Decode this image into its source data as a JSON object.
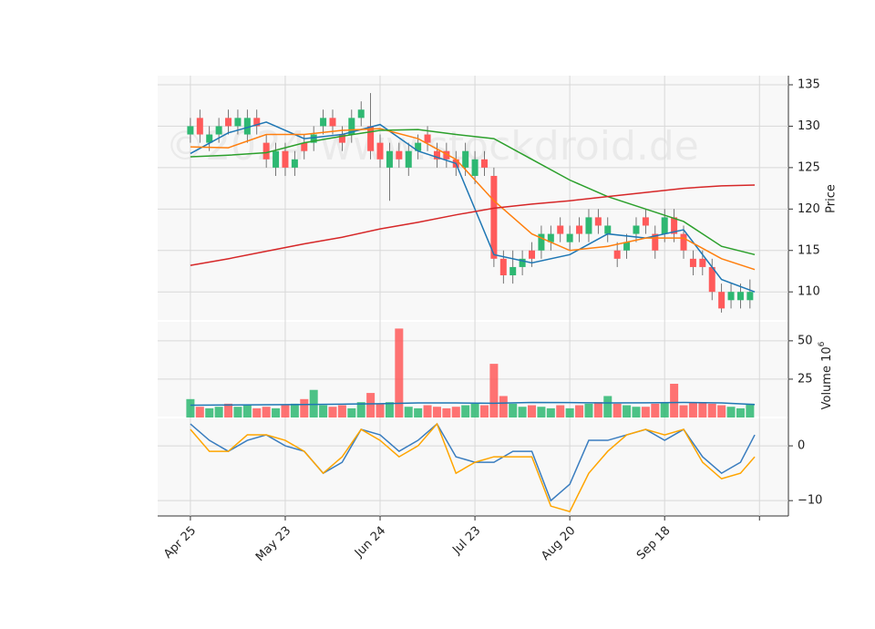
{
  "chart_data": [
    {
      "type": "candlestick",
      "ylabel": "Price",
      "watermark": "©2024 www.stockdroid.de",
      "up_color": "#2eb872",
      "down_color": "#ff5a5a",
      "x": [
        0,
        2,
        4,
        6,
        8,
        10,
        12,
        14,
        16,
        18,
        20,
        22,
        24,
        26,
        28,
        30,
        32,
        34,
        36,
        38,
        40,
        42,
        44,
        46,
        48,
        50,
        52,
        54,
        56,
        58,
        60,
        62,
        64,
        66,
        68,
        70,
        72,
        74,
        76,
        78,
        80,
        82,
        84,
        86,
        88,
        90,
        92,
        94,
        96,
        98,
        100,
        102,
        104,
        106,
        108,
        110,
        112,
        114,
        116,
        118
      ],
      "open": [
        129,
        131,
        128,
        129,
        131,
        130,
        129,
        131,
        128,
        125,
        127,
        125,
        128,
        128,
        130,
        131,
        129,
        129,
        131,
        130,
        128,
        125,
        127,
        125,
        127,
        129,
        127,
        127,
        126,
        125,
        124,
        126,
        124,
        114,
        112,
        113,
        115,
        115,
        116,
        118,
        116,
        118,
        117,
        119,
        117,
        115,
        115,
        117,
        119,
        117,
        117,
        119,
        117,
        114,
        114,
        113,
        110,
        109,
        109,
        109
      ],
      "high": [
        131,
        132,
        130,
        131,
        132,
        132,
        132,
        132,
        129,
        128,
        128,
        127,
        129,
        130,
        132,
        132,
        130,
        132,
        133,
        134,
        129,
        128,
        128,
        128,
        129,
        130,
        128,
        128,
        127,
        128,
        127,
        127,
        125,
        115,
        115,
        115,
        116,
        118,
        118,
        119,
        118,
        119,
        120,
        120,
        119,
        116,
        117,
        119,
        120,
        118,
        120,
        120,
        118,
        115,
        115,
        114,
        111,
        111,
        111,
        111.5
      ],
      "low": [
        128,
        128,
        127,
        128,
        129,
        129,
        128,
        129,
        125,
        124,
        124,
        124,
        126,
        127,
        129,
        129,
        127,
        128,
        130,
        126,
        125,
        121,
        125,
        124,
        126,
        127,
        125,
        125,
        124,
        124,
        123,
        124,
        113,
        111,
        111,
        112,
        113,
        114,
        115,
        116,
        115,
        116,
        116,
        117,
        116,
        113,
        114,
        116,
        117,
        114,
        116,
        116,
        114,
        112,
        112,
        109,
        107.5,
        108,
        108,
        108
      ],
      "close": [
        130,
        129,
        129,
        130,
        130,
        131,
        131,
        130,
        126,
        127,
        125,
        126,
        127,
        129,
        131,
        130,
        128,
        131,
        132,
        127,
        126,
        127,
        126,
        127,
        128,
        128,
        126,
        126,
        125,
        127,
        126,
        125,
        114,
        112,
        113,
        114,
        114,
        117,
        117,
        117,
        117,
        117,
        119,
        118,
        118,
        114,
        116,
        118,
        118,
        115,
        119,
        117,
        115,
        113,
        113,
        110,
        108,
        110,
        110,
        110
      ],
      "ylim": [
        106.5,
        136.1
      ],
      "yticks": [
        110,
        115,
        120,
        125,
        130,
        135
      ],
      "lines": [
        {
          "color": "#1f77b4",
          "x": [
            0,
            8,
            16,
            24,
            32,
            40,
            48,
            56,
            64,
            72,
            80,
            88,
            96,
            104,
            112,
            119
          ],
          "values": [
            126.7,
            129.2,
            130.5,
            128.5,
            129,
            130.2,
            127,
            125.5,
            114.5,
            113.5,
            114.5,
            117,
            116.5,
            117.5,
            111.5,
            110
          ]
        },
        {
          "color": "#ff7f0e",
          "x": [
            0,
            8,
            16,
            24,
            32,
            40,
            48,
            56,
            64,
            72,
            80,
            88,
            96,
            104,
            112,
            119
          ],
          "values": [
            127.5,
            127.4,
            129,
            129,
            129.5,
            129.7,
            128.5,
            126,
            121,
            117,
            115,
            115.5,
            116.5,
            116.5,
            114,
            112.7
          ]
        },
        {
          "color": "#2ca02c",
          "x": [
            0,
            8,
            16,
            24,
            32,
            40,
            48,
            56,
            64,
            72,
            80,
            88,
            96,
            104,
            112,
            119
          ],
          "values": [
            126.3,
            126.5,
            126.8,
            128,
            128.8,
            129.5,
            129.6,
            129,
            128.5,
            126,
            123.5,
            121.5,
            120,
            118.5,
            115.5,
            114.5
          ]
        },
        {
          "color": "#d62728",
          "x": [
            0,
            8,
            16,
            24,
            32,
            40,
            48,
            56,
            64,
            72,
            80,
            88,
            96,
            104,
            112,
            119
          ],
          "values": [
            113.2,
            114,
            114.9,
            115.8,
            116.6,
            117.6,
            118.4,
            119.3,
            120.1,
            120.6,
            121,
            121.5,
            122,
            122.5,
            122.8,
            122.9
          ]
        }
      ]
    },
    {
      "type": "bar",
      "ylabel": "Volume",
      "ylabel_exp": "6",
      "ylabel_base": "10",
      "x": [
        0,
        2,
        4,
        6,
        8,
        10,
        12,
        14,
        16,
        18,
        20,
        22,
        24,
        26,
        28,
        30,
        32,
        34,
        36,
        38,
        40,
        42,
        44,
        46,
        48,
        50,
        52,
        54,
        56,
        58,
        60,
        62,
        64,
        66,
        68,
        70,
        72,
        74,
        76,
        78,
        80,
        82,
        84,
        86,
        88,
        90,
        92,
        94,
        96,
        98,
        100,
        102,
        104,
        106,
        108,
        110,
        112,
        114,
        116,
        118
      ],
      "values": [
        12,
        7,
        6,
        7,
        9,
        7,
        8,
        6,
        7,
        6,
        8,
        9,
        12,
        18,
        8,
        7,
        8,
        6,
        10,
        16,
        9,
        10,
        58,
        7,
        6,
        8,
        7,
        6,
        7,
        8,
        9,
        8,
        35,
        14,
        9,
        7,
        8,
        7,
        6,
        8,
        6,
        8,
        9,
        10,
        14,
        9,
        8,
        7,
        7,
        9,
        10,
        22,
        8,
        10,
        10,
        9,
        8,
        7,
        6,
        9
      ],
      "ylim": [
        0,
        63
      ],
      "yticks": [
        25,
        50
      ],
      "line": {
        "color": "#1f77b4",
        "x": [
          0,
          8,
          16,
          24,
          32,
          40,
          48,
          56,
          64,
          72,
          80,
          88,
          96,
          104,
          112,
          119
        ],
        "values": [
          8,
          8.2,
          8.3,
          8.5,
          8.7,
          9,
          9.5,
          9.5,
          9.3,
          9.8,
          9.7,
          9.5,
          9.6,
          9.8,
          9.5,
          8.5
        ]
      }
    },
    {
      "type": "line",
      "ylim": [
        -12.8,
        5.17
      ],
      "yticks": [
        {
          "value": -10,
          "label": "−10"
        },
        0
      ],
      "xlim": [
        -6.9,
        126.1
      ],
      "xticks": [
        {
          "value": 0,
          "label": "Apr 25"
        },
        {
          "value": 20,
          "label": "May 23"
        },
        {
          "value": 40,
          "label": "Jun 24"
        },
        {
          "value": 60,
          "label": "Jul 23"
        },
        {
          "value": 80,
          "label": "Aug 20"
        },
        {
          "value": 100,
          "label": "Sep 18"
        },
        {
          "value": 120,
          "label": null
        }
      ],
      "series": [
        {
          "color": "#3a7dbf",
          "x": [
            0,
            4,
            8,
            12,
            16,
            20,
            24,
            28,
            32,
            36,
            40,
            44,
            48,
            52,
            56,
            60,
            64,
            68,
            72,
            76,
            80,
            84,
            88,
            92,
            96,
            100,
            104,
            108,
            112,
            116,
            119
          ],
          "values": [
            4,
            1,
            -1,
            1,
            2,
            0,
            -1,
            -5,
            -3,
            3,
            2,
            -1,
            1,
            4,
            -2,
            -3,
            -3,
            -1,
            -1,
            -10,
            -7,
            1,
            1,
            2,
            3,
            1,
            3,
            -2,
            -5,
            -3,
            2
          ]
        },
        {
          "color": "#ffa500",
          "x": [
            0,
            4,
            8,
            12,
            16,
            20,
            24,
            28,
            32,
            36,
            40,
            44,
            48,
            52,
            56,
            60,
            64,
            68,
            72,
            76,
            80,
            84,
            88,
            92,
            96,
            100,
            104,
            108,
            112,
            116,
            119
          ],
          "values": [
            3,
            -1,
            -1,
            2,
            2,
            1,
            -1,
            -5,
            -2,
            3,
            1,
            -2,
            0,
            4,
            -5,
            -3,
            -2,
            -2,
            -2,
            -11,
            -12,
            -5,
            -1,
            2,
            3,
            2,
            3,
            -3,
            -6,
            -5,
            -2
          ]
        }
      ]
    }
  ]
}
